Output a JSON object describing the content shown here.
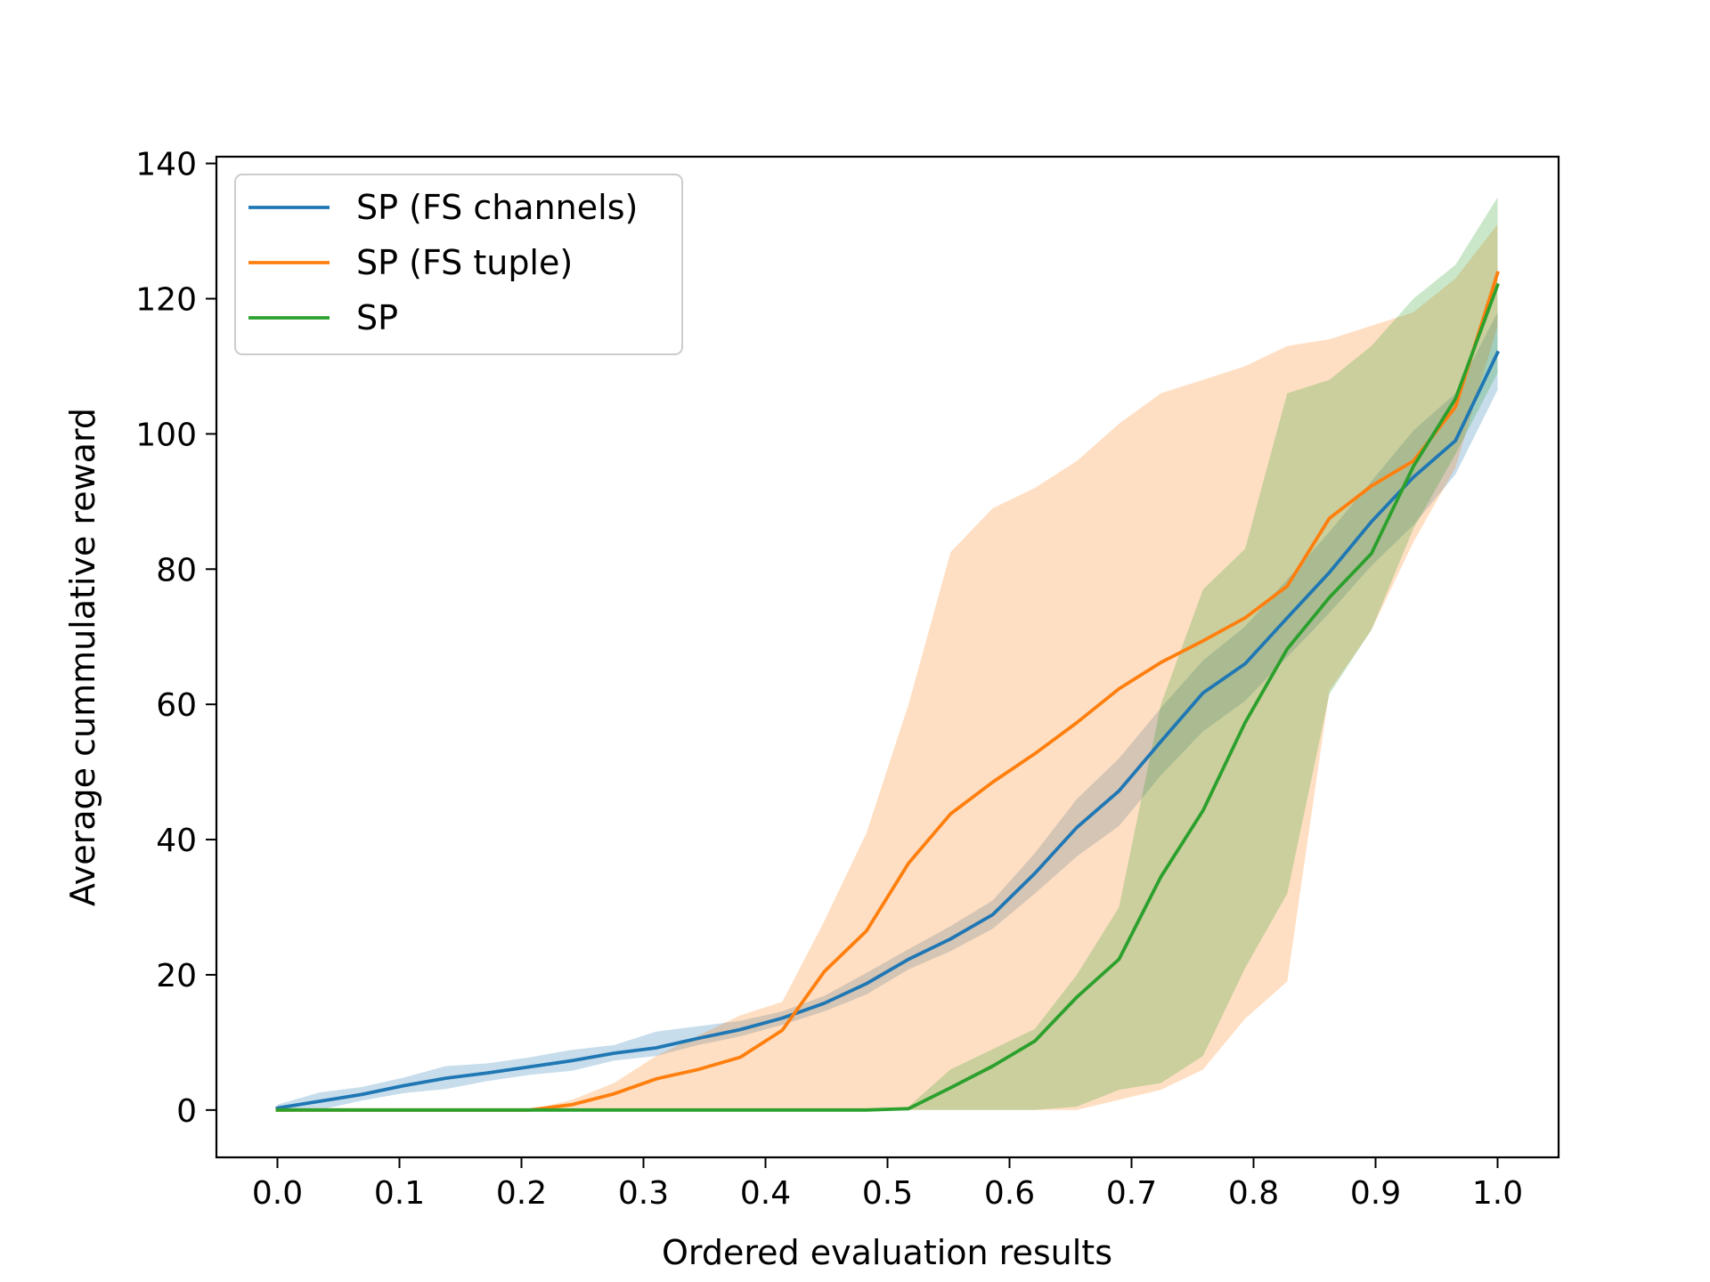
{
  "chart_data": {
    "type": "line",
    "xlabel": "Ordered evaluation results",
    "ylabel": "Average cummulative reward",
    "xlim": [
      -0.05,
      1.05
    ],
    "ylim": [
      -7,
      141
    ],
    "xticks": [
      0.0,
      0.1,
      0.2,
      0.3,
      0.4,
      0.5,
      0.6,
      0.7,
      0.8,
      0.9,
      1.0
    ],
    "xtick_labels": [
      "0.0",
      "0.1",
      "0.2",
      "0.3",
      "0.4",
      "0.5",
      "0.6",
      "0.7",
      "0.8",
      "0.9",
      "1.0"
    ],
    "yticks": [
      0,
      20,
      40,
      60,
      80,
      100,
      120,
      140
    ],
    "ytick_labels": [
      "0",
      "20",
      "40",
      "60",
      "80",
      "100",
      "120",
      "140"
    ],
    "grid": false,
    "legend_position": "top-left",
    "x": [
      0.0,
      0.0345,
      0.069,
      0.1034,
      0.1379,
      0.1724,
      0.2069,
      0.2414,
      0.2759,
      0.3103,
      0.3448,
      0.3793,
      0.4138,
      0.4483,
      0.4828,
      0.5172,
      0.5517,
      0.5862,
      0.6207,
      0.6552,
      0.6897,
      0.7241,
      0.7586,
      0.7931,
      0.8276,
      0.8621,
      0.8966,
      0.931,
      0.9655,
      1.0
    ],
    "series": [
      {
        "name": "SP (FS channels)",
        "color": "#1f77b4",
        "values": [
          0.3,
          1.3,
          2.3,
          3.6,
          4.7,
          5.5,
          6.4,
          7.3,
          8.4,
          9.2,
          10.6,
          11.9,
          13.6,
          15.8,
          18.7,
          22.3,
          25.3,
          28.9,
          35.0,
          41.8,
          47.2,
          54.5,
          61.7,
          66.0,
          72.8,
          79.5,
          87.0,
          93.6,
          99.0,
          112.0
        ],
        "lower": [
          0.0,
          0.0,
          1.4,
          2.5,
          3.1,
          4.3,
          5.2,
          5.8,
          7.3,
          8.0,
          9.6,
          10.9,
          12.6,
          14.6,
          17.1,
          20.8,
          23.5,
          26.8,
          32.0,
          37.5,
          42.0,
          49.5,
          56.0,
          60.5,
          67.0,
          73.5,
          80.5,
          86.5,
          94.0,
          106.5
        ],
        "upper": [
          0.8,
          2.6,
          3.4,
          4.8,
          6.5,
          6.9,
          7.8,
          8.9,
          9.6,
          11.6,
          12.4,
          13.2,
          14.6,
          16.9,
          20.3,
          23.8,
          27.2,
          31.0,
          38.0,
          46.0,
          52.0,
          59.5,
          66.5,
          71.5,
          78.5,
          85.5,
          93.0,
          100.5,
          106.0,
          118.0
        ]
      },
      {
        "name": "SP (FS tuple)",
        "color": "#ff7f0e",
        "values": [
          0.0,
          0.0,
          0.0,
          0.0,
          0.0,
          0.0,
          0.0,
          0.8,
          2.4,
          4.6,
          6.0,
          7.8,
          11.8,
          20.5,
          26.5,
          36.5,
          43.8,
          48.5,
          52.7,
          57.3,
          62.3,
          66.2,
          69.4,
          72.8,
          77.5,
          87.5,
          92.3,
          96.0,
          104.0,
          123.8
        ],
        "lower": [
          0.0,
          0.0,
          0.0,
          0.0,
          0.0,
          0.0,
          0.0,
          0.0,
          0.0,
          0.0,
          0.0,
          0.0,
          0.0,
          0.0,
          0.0,
          0.0,
          0.0,
          0.0,
          0.0,
          0.0,
          1.5,
          3.0,
          6.0,
          13.5,
          19.0,
          62.0,
          71.0,
          84.0,
          95.0,
          116.0
        ],
        "upper": [
          0.0,
          0.0,
          0.0,
          0.0,
          0.0,
          0.0,
          0.0,
          1.5,
          4.0,
          8.0,
          11.0,
          14.0,
          16.0,
          28.0,
          41.0,
          60.0,
          82.5,
          89.0,
          92.0,
          96.0,
          101.5,
          106.0,
          108.0,
          110.0,
          113.0,
          114.0,
          116.0,
          118.0,
          123.0,
          131.0
        ]
      },
      {
        "name": "SP",
        "color": "#2ca02c",
        "values": [
          0.0,
          0.0,
          0.0,
          0.0,
          0.0,
          0.0,
          0.0,
          0.0,
          0.0,
          0.0,
          0.0,
          0.0,
          0.0,
          0.0,
          0.0,
          0.2,
          3.3,
          6.5,
          10.2,
          16.7,
          22.3,
          34.5,
          44.3,
          57.3,
          68.2,
          75.8,
          82.3,
          95.2,
          105.2,
          122.0
        ],
        "lower": [
          0.0,
          0.0,
          0.0,
          0.0,
          0.0,
          0.0,
          0.0,
          0.0,
          0.0,
          0.0,
          0.0,
          0.0,
          0.0,
          0.0,
          0.0,
          0.0,
          0.0,
          0.0,
          0.0,
          0.5,
          3.0,
          4.0,
          8.0,
          21.0,
          32.0,
          61.5,
          71.0,
          86.0,
          97.0,
          109.0
        ],
        "upper": [
          0.0,
          0.0,
          0.0,
          0.0,
          0.0,
          0.0,
          0.0,
          0.0,
          0.0,
          0.0,
          0.0,
          0.0,
          0.0,
          0.0,
          0.0,
          0.5,
          6.0,
          9.0,
          12.0,
          20.0,
          30.0,
          60.0,
          77.0,
          83.0,
          106.0,
          108.0,
          113.0,
          120.0,
          125.0,
          135.0
        ]
      }
    ]
  }
}
